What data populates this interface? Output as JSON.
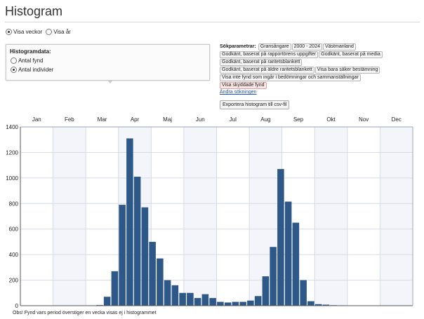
{
  "page": {
    "title": "Histogram"
  },
  "view_options": [
    {
      "label": "Visa veckor",
      "checked": true
    },
    {
      "label": "Visa år",
      "checked": false
    }
  ],
  "histogram_data": {
    "title": "Histogramdata:",
    "options": [
      {
        "label": "Antal fynd",
        "checked": false
      },
      {
        "label": "Antal individer",
        "checked": true
      }
    ]
  },
  "search_params": {
    "label": "Sökparametrar:",
    "tags": [
      {
        "label": "Gransångare"
      },
      {
        "label": "2000 - 2024"
      },
      {
        "label": "Västmanland"
      },
      {
        "label": "Godkänt, baserat på rapportörens uppgifter"
      },
      {
        "label": "Godkänt, baserat på media"
      },
      {
        "label": "Godkänt, baserat på raritetsblankett"
      },
      {
        "label": "Godkänt, baserat på äldre raritetsblankett"
      },
      {
        "label": "Visa bara säker bestämning"
      },
      {
        "label": "Visa inte fynd som ingår i bedömningar och sammanställningar"
      },
      {
        "label": "Visa skyddade fynd",
        "highlight": true
      }
    ],
    "link": "Ändra sökningen"
  },
  "export_button": "Exportera histogram till csv-fil",
  "footnote": "Obs! Fynd vars period överstiger en vecka visas ej i histogrammet",
  "colors": {
    "bar": "#2e5888",
    "grid": "#d6dbe5",
    "band": "#f3f5fa"
  },
  "chart_data": {
    "type": "bar",
    "months": [
      "Jan",
      "Feb",
      "Mar",
      "Apr",
      "Maj",
      "Jun",
      "Jul",
      "Aug",
      "Sep",
      "Okt",
      "Nov",
      "Dec"
    ],
    "yticks": [
      0,
      200,
      400,
      600,
      800,
      1000,
      1200,
      1400
    ],
    "ylim": [
      0,
      1400
    ],
    "weeks": [
      1,
      2,
      3,
      4,
      5,
      6,
      7,
      8,
      9,
      10,
      11,
      12,
      13,
      14,
      15,
      16,
      17,
      18,
      19,
      20,
      21,
      22,
      23,
      24,
      25,
      26,
      27,
      28,
      29,
      30,
      31,
      32,
      33,
      34,
      35,
      36,
      37,
      38,
      39,
      40,
      41,
      42,
      43,
      44,
      45,
      46,
      47,
      48,
      49,
      50,
      51,
      52
    ],
    "values": [
      0,
      0,
      0,
      0,
      0,
      0,
      0,
      0,
      0,
      3,
      5,
      70,
      270,
      790,
      1310,
      1010,
      770,
      500,
      370,
      200,
      160,
      100,
      100,
      60,
      90,
      60,
      30,
      25,
      30,
      30,
      40,
      75,
      230,
      460,
      1070,
      815,
      650,
      200,
      35,
      12,
      8,
      4,
      3,
      2,
      0,
      0,
      0,
      0,
      0,
      0,
      0,
      0
    ]
  }
}
